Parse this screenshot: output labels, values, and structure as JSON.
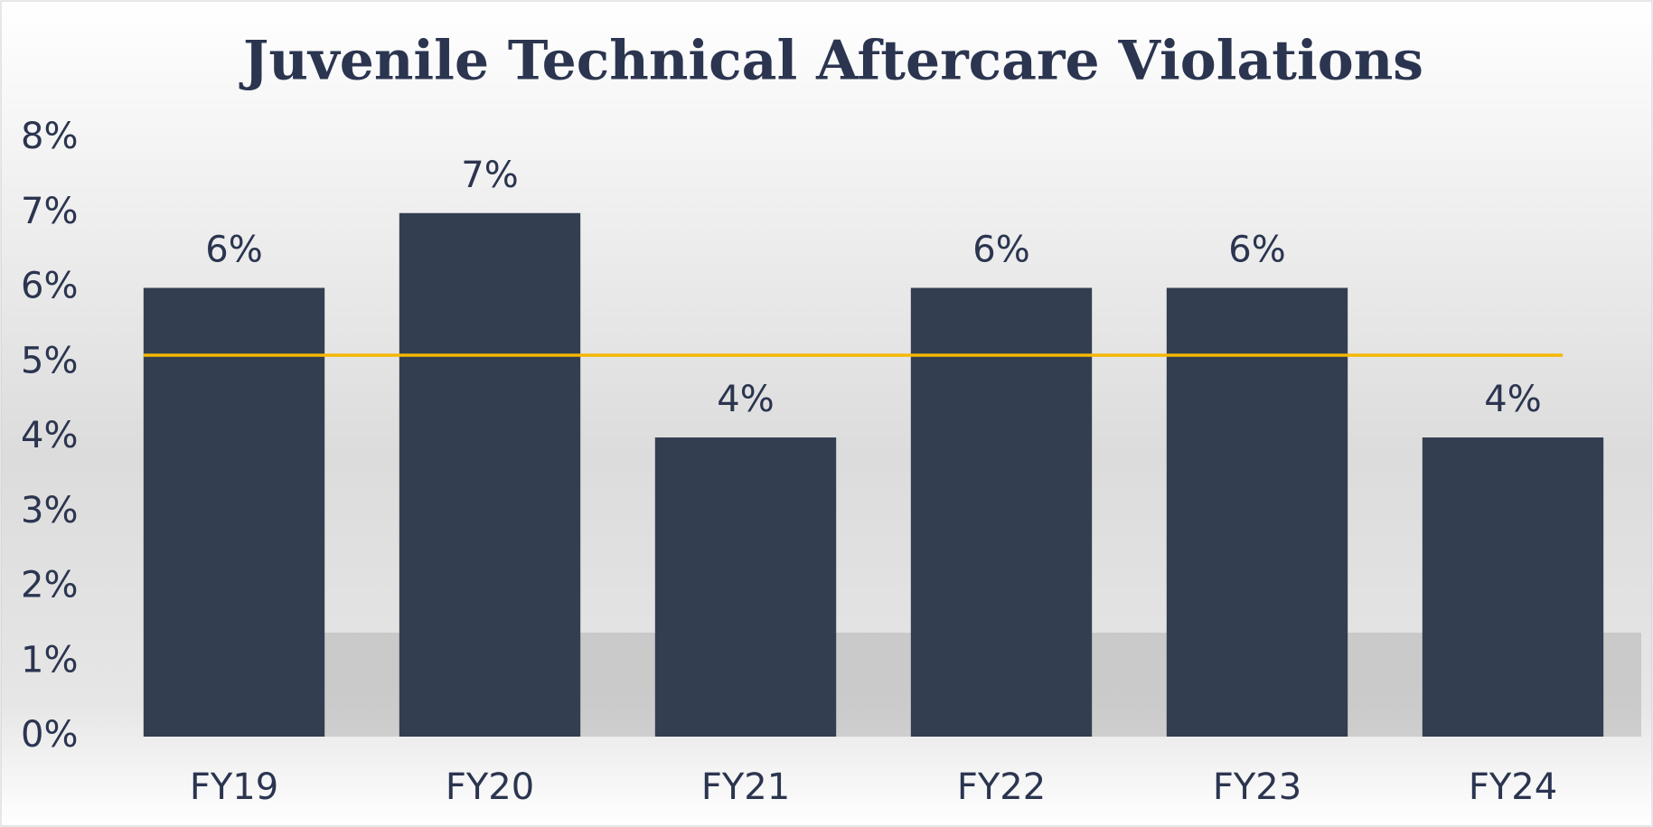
{
  "chart_data": {
    "type": "bar",
    "title": "Juvenile Technical Aftercare Violations",
    "categories": [
      "FY19",
      "FY20",
      "FY21",
      "FY22",
      "FY23",
      "FY24"
    ],
    "values": [
      6,
      7,
      4,
      6,
      6,
      4
    ],
    "value_labels": [
      "6%",
      "7%",
      "4%",
      "6%",
      "6%",
      "4%"
    ],
    "color": "#333e50",
    "ylim": [
      0,
      8
    ],
    "yticks": [
      {
        "value": 0,
        "label": "0%"
      },
      {
        "value": 1,
        "label": "1%"
      },
      {
        "value": 2,
        "label": "2%"
      },
      {
        "value": 3,
        "label": "3%"
      },
      {
        "value": 4,
        "label": "4%"
      },
      {
        "value": 5,
        "label": "5%"
      },
      {
        "value": 6,
        "label": "6%"
      },
      {
        "value": 7,
        "label": "7%"
      },
      {
        "value": 8,
        "label": "8%"
      }
    ],
    "grid": false,
    "reference_line": {
      "value": 5.1,
      "color": "#f5b800"
    }
  }
}
